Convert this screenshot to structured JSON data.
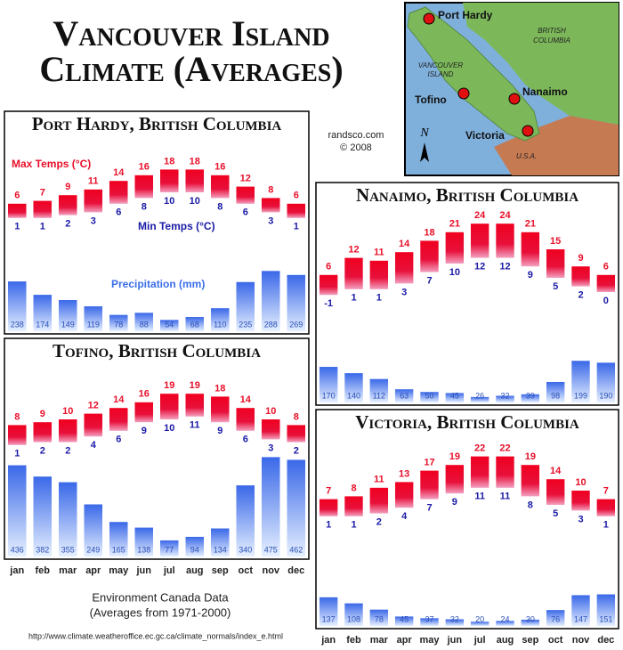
{
  "title_lines": [
    "Vancouver Island",
    "Climate (Averages)"
  ],
  "credit": "randsco.com",
  "credit_year": "© 2008",
  "map": {
    "port_hardy": "Port Hardy",
    "bc": [
      "BRITISH",
      "COLUMBIA"
    ],
    "island": [
      "VANCOUVER",
      "ISLAND"
    ],
    "tofino": "Tofino",
    "nanaimo": "Nanaimo",
    "victoria": "Victoria",
    "usa": "U.S.A.",
    "north": "N"
  },
  "source": "Environment Canada Data",
  "source_note": "(Averages from 1971-2000)",
  "url": "http://www.climate.weatheroffice.ec.gc.ca/climate_normals/index_e.html",
  "chart_data": [
    {
      "type": "range-bar",
      "title": "Port Hardy, British Columbia",
      "series": [
        {
          "name": "Max Temps (°C)",
          "color": "#e8102a",
          "values": [
            6,
            7,
            9,
            11,
            14,
            16,
            18,
            18,
            16,
            12,
            8,
            6
          ]
        },
        {
          "name": "Min Temps (°C)",
          "color": "#1a1aa6",
          "values": [
            1,
            1,
            2,
            3,
            6,
            8,
            10,
            10,
            8,
            6,
            3,
            1
          ]
        },
        {
          "name": "Precipitation (mm)",
          "color": "#3a6ee8",
          "values": [
            238,
            174,
            149,
            119,
            78,
            88,
            54,
            68,
            110,
            235,
            288,
            269
          ]
        }
      ]
    },
    {
      "type": "range-bar",
      "title": "Nanaimo, British Columbia",
      "series": [
        {
          "color": "#e8102a",
          "values": [
            6,
            12,
            11,
            14,
            18,
            21,
            24,
            24,
            21,
            15,
            9,
            6
          ]
        },
        {
          "color": "#1a1aa6",
          "values": [
            -1,
            1,
            1,
            3,
            7,
            10,
            12,
            12,
            9,
            5,
            2,
            0
          ]
        },
        {
          "color": "#3a6ee8",
          "values": [
            170,
            140,
            112,
            63,
            50,
            45,
            26,
            32,
            39,
            98,
            199,
            190
          ]
        }
      ]
    },
    {
      "type": "range-bar",
      "title": "Tofino, British Columbia",
      "categories": [
        "jan",
        "feb",
        "mar",
        "apr",
        "may",
        "jun",
        "jul",
        "aug",
        "sep",
        "oct",
        "nov",
        "dec"
      ],
      "series": [
        {
          "color": "#e8102a",
          "values": [
            8,
            9,
            10,
            12,
            14,
            16,
            19,
            19,
            18,
            14,
            10,
            8
          ]
        },
        {
          "color": "#1a1aa6",
          "values": [
            1,
            2,
            2,
            4,
            6,
            9,
            10,
            11,
            9,
            6,
            3,
            2
          ]
        },
        {
          "color": "#3a6ee8",
          "values": [
            436,
            382,
            355,
            249,
            165,
            138,
            77,
            94,
            134,
            340,
            475,
            462
          ]
        }
      ]
    },
    {
      "type": "range-bar",
      "title": "Victoria, British Columbia",
      "categories": [
        "jan",
        "feb",
        "mar",
        "apr",
        "may",
        "jun",
        "jul",
        "aug",
        "sep",
        "oct",
        "nov",
        "dec"
      ],
      "series": [
        {
          "color": "#e8102a",
          "values": [
            7,
            8,
            11,
            13,
            17,
            19,
            22,
            22,
            19,
            14,
            10,
            7
          ]
        },
        {
          "color": "#1a1aa6",
          "values": [
            1,
            1,
            2,
            4,
            7,
            9,
            11,
            11,
            8,
            5,
            3,
            1
          ]
        },
        {
          "color": "#3a6ee8",
          "values": [
            137,
            108,
            78,
            45,
            37,
            32,
            20,
            24,
            30,
            76,
            147,
            151
          ]
        }
      ]
    }
  ]
}
